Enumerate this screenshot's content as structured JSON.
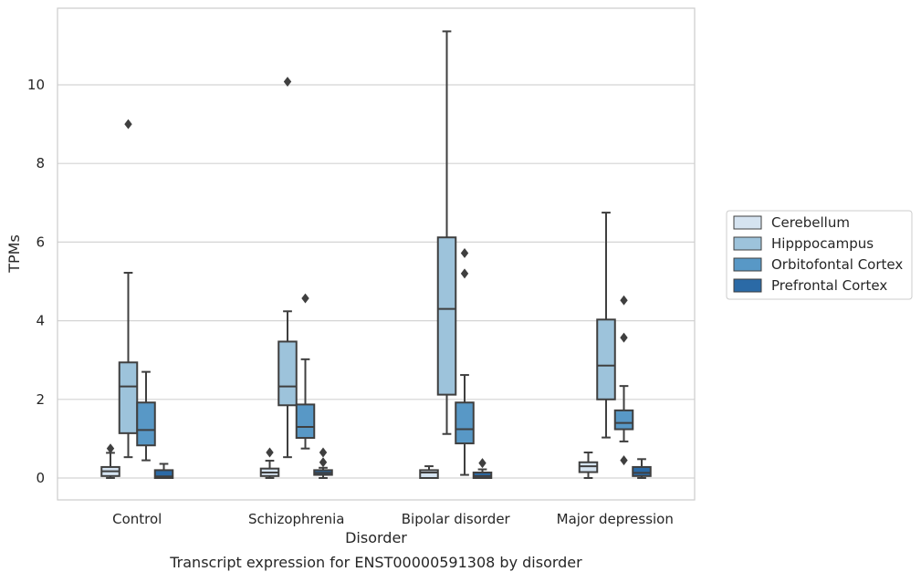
{
  "chart_data": {
    "type": "box",
    "caption": "Transcript expression for ENST00000591308 by disorder",
    "xlabel": "Disorder",
    "ylabel": "TPMs",
    "ylim": [
      -0.55,
      12.0
    ],
    "yticks": [
      0,
      2,
      4,
      6,
      8,
      10
    ],
    "grid": true,
    "legend_position": "right",
    "categories": [
      "Control",
      "Schizophrenia",
      "Bipolar disorder",
      "Major depression"
    ],
    "series": [
      {
        "name": "Cerebellum",
        "color": "#d5e3f0",
        "boxes": [
          {
            "whislo": 0.0,
            "q1": 0.05,
            "med": 0.17,
            "q3": 0.28,
            "whishi": 0.64,
            "fliers": [
              0.75
            ]
          },
          {
            "whislo": 0.0,
            "q1": 0.05,
            "med": 0.14,
            "q3": 0.24,
            "whishi": 0.44,
            "fliers": [
              0.65
            ]
          },
          {
            "whislo": 0.0,
            "q1": 0.0,
            "med": 0.14,
            "q3": 0.2,
            "whishi": 0.3,
            "fliers": []
          },
          {
            "whislo": 0.0,
            "q1": 0.15,
            "med": 0.3,
            "q3": 0.4,
            "whishi": 0.65,
            "fliers": []
          }
        ]
      },
      {
        "name": "Hipppocampus",
        "color": "#9dc3db",
        "boxes": [
          {
            "whislo": 0.53,
            "q1": 1.14,
            "med": 2.33,
            "q3": 2.94,
            "whishi": 5.22,
            "fliers": [
              9.0
            ]
          },
          {
            "whislo": 0.53,
            "q1": 1.85,
            "med": 2.33,
            "q3": 3.47,
            "whishi": 4.24,
            "fliers": [
              10.08
            ]
          },
          {
            "whislo": 1.12,
            "q1": 2.12,
            "med": 4.3,
            "q3": 6.12,
            "whishi": 11.36,
            "fliers": []
          },
          {
            "whislo": 1.03,
            "q1": 2.0,
            "med": 2.86,
            "q3": 4.03,
            "whishi": 6.75,
            "fliers": []
          }
        ]
      },
      {
        "name": "Orbitofontal Cortex",
        "color": "#5898c6",
        "boxes": [
          {
            "whislo": 0.45,
            "q1": 0.83,
            "med": 1.22,
            "q3": 1.92,
            "whishi": 2.7,
            "fliers": []
          },
          {
            "whislo": 0.75,
            "q1": 1.02,
            "med": 1.3,
            "q3": 1.87,
            "whishi": 3.02,
            "fliers": [
              4.57
            ]
          },
          {
            "whislo": 0.08,
            "q1": 0.88,
            "med": 1.24,
            "q3": 1.92,
            "whishi": 2.62,
            "fliers": [
              5.2,
              5.72
            ]
          },
          {
            "whislo": 0.93,
            "q1": 1.24,
            "med": 1.4,
            "q3": 1.72,
            "whishi": 2.34,
            "fliers": [
              0.45,
              3.57,
              4.52
            ]
          }
        ]
      },
      {
        "name": "Prefrontal Cortex",
        "color": "#2b6aa6",
        "boxes": [
          {
            "whislo": 0.0,
            "q1": 0.0,
            "med": 0.04,
            "q3": 0.2,
            "whishi": 0.36,
            "fliers": []
          },
          {
            "whislo": 0.0,
            "q1": 0.08,
            "med": 0.13,
            "q3": 0.2,
            "whishi": 0.26,
            "fliers": [
              0.4,
              0.65
            ]
          },
          {
            "whislo": 0.0,
            "q1": 0.0,
            "med": 0.05,
            "q3": 0.14,
            "whishi": 0.22,
            "fliers": [
              0.38
            ]
          },
          {
            "whislo": 0.0,
            "q1": 0.05,
            "med": 0.13,
            "q3": 0.28,
            "whishi": 0.48,
            "fliers": []
          }
        ]
      }
    ]
  }
}
